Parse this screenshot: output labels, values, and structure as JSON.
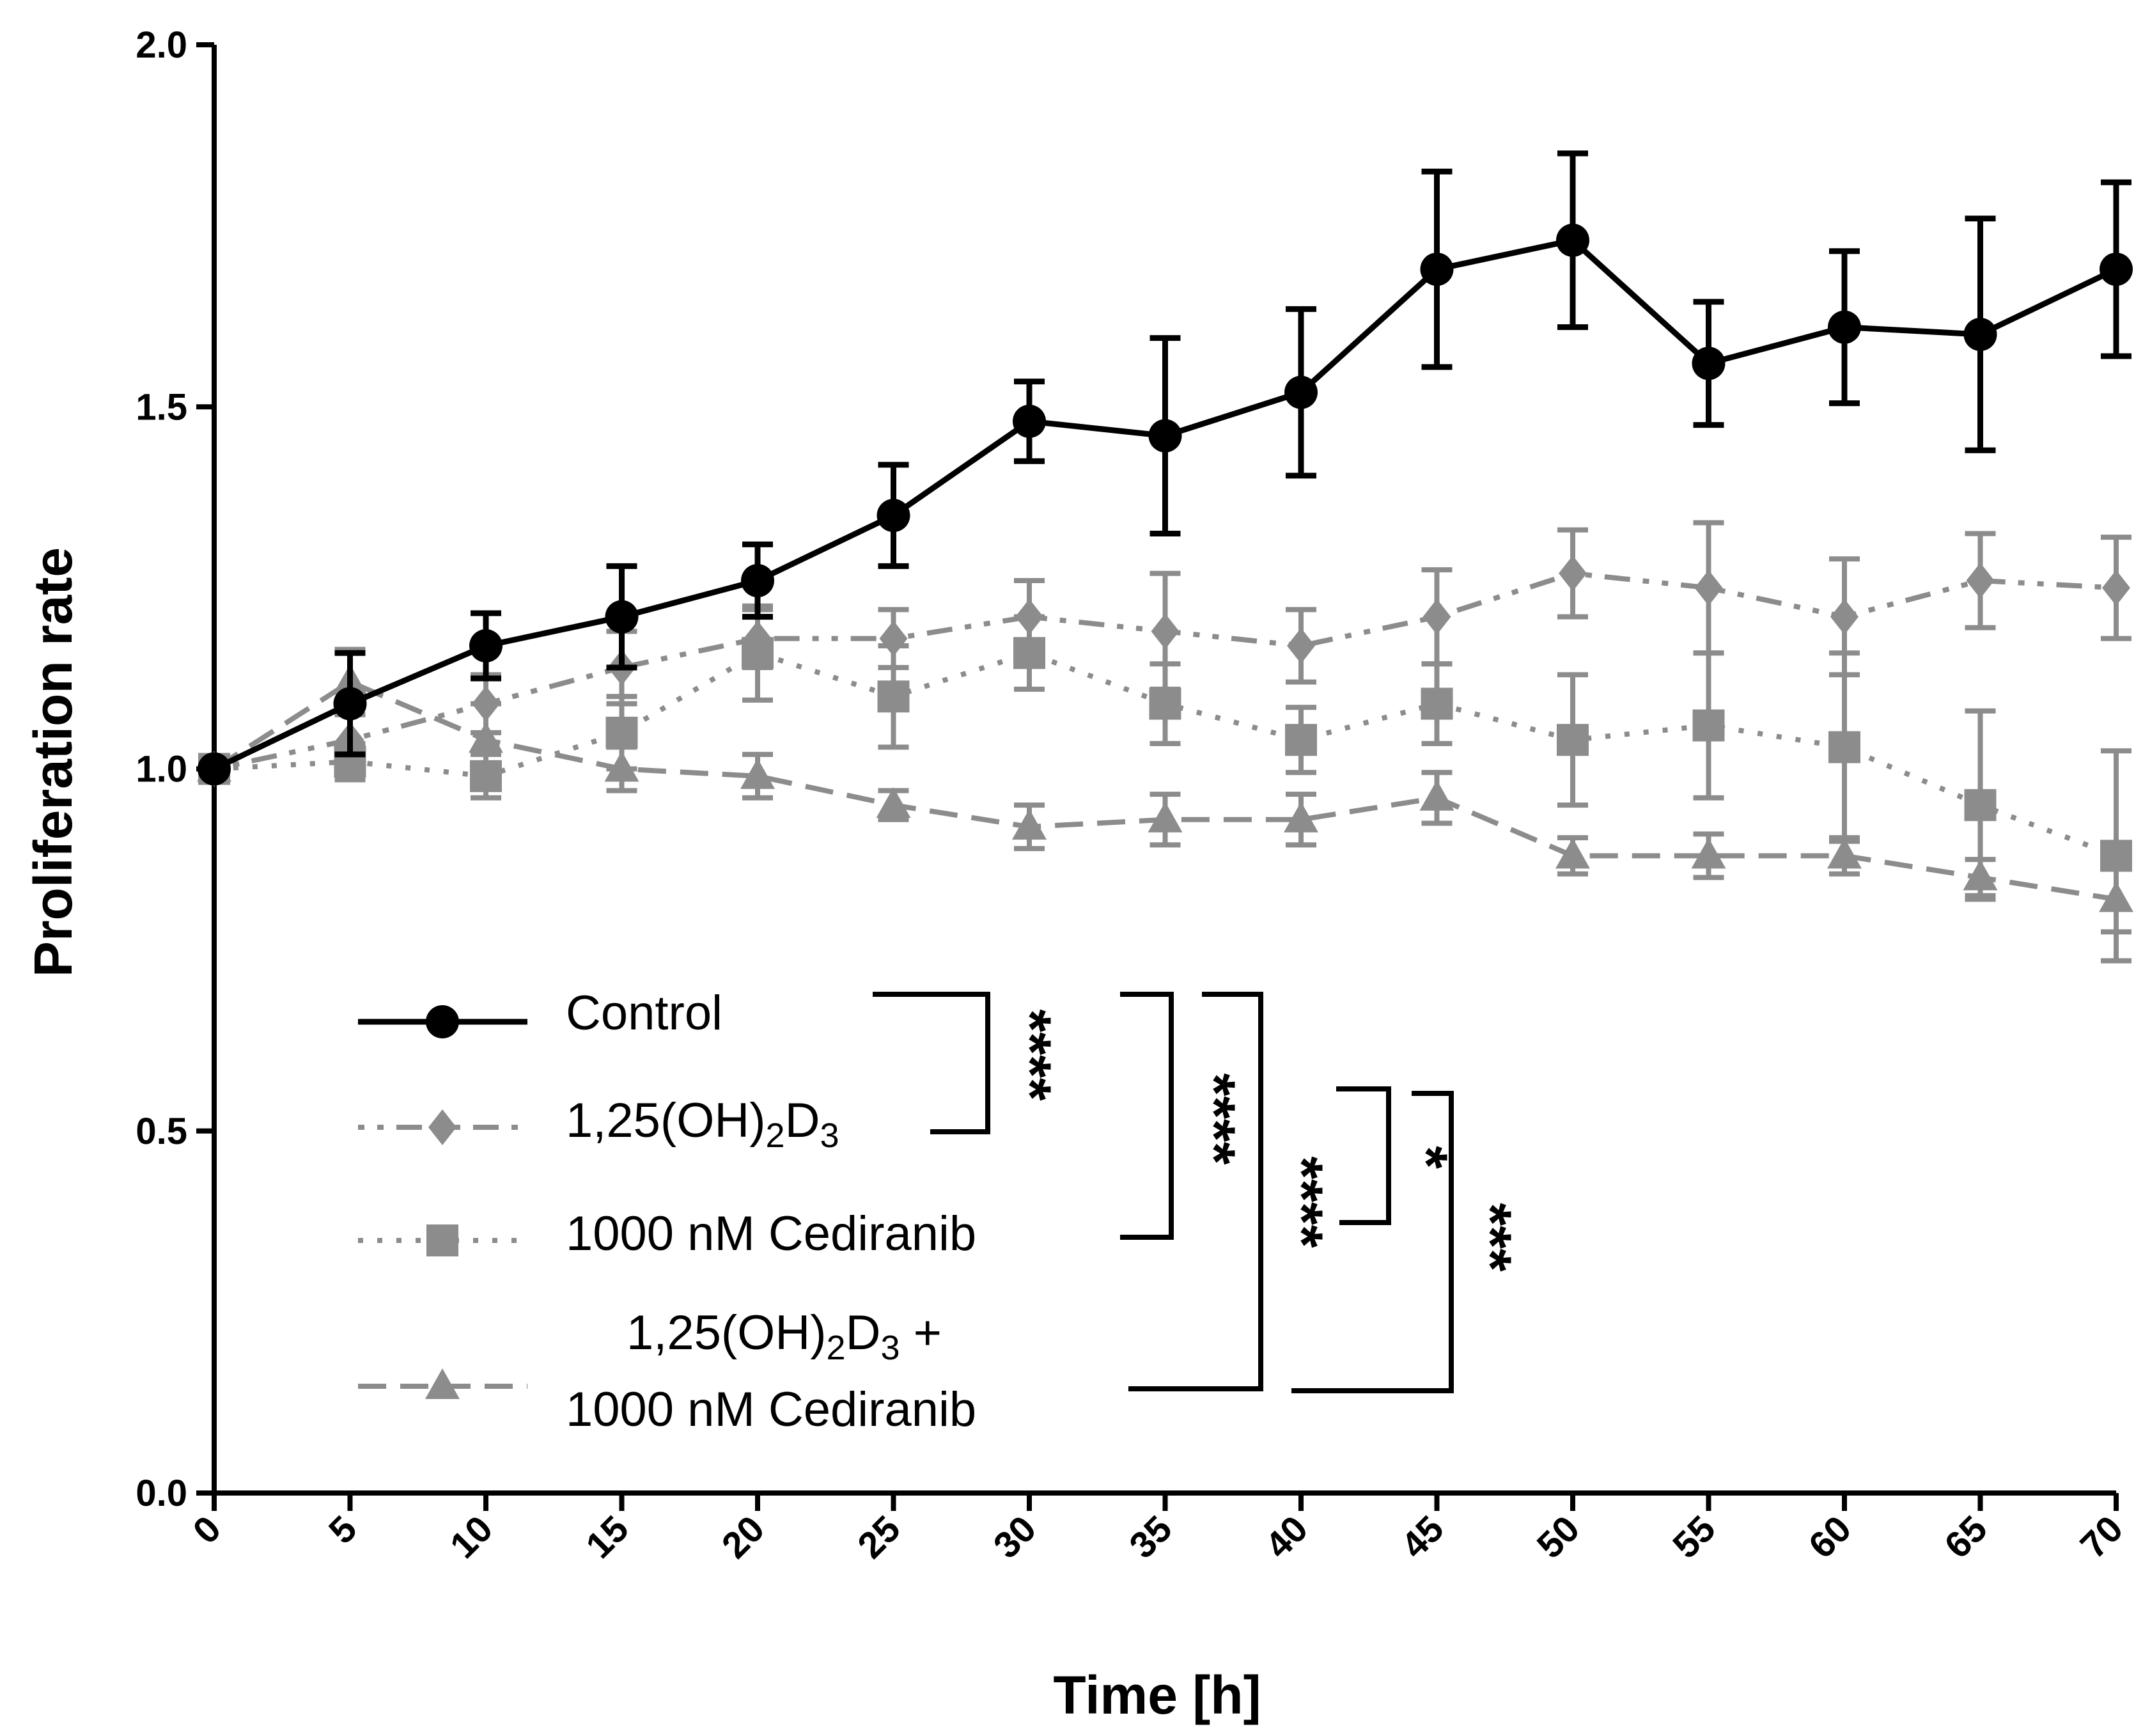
{
  "chart_data": {
    "type": "line",
    "xlabel": "Time [h]",
    "ylabel": "Proliferation rate",
    "xlim": [
      0,
      70
    ],
    "ylim": [
      0,
      2.0
    ],
    "xticks": [
      "0",
      "5",
      "10",
      "15",
      "20",
      "25",
      "30",
      "35",
      "40",
      "45",
      "50",
      "55",
      "60",
      "65",
      "70"
    ],
    "yticks": [
      "0.0",
      "0.5",
      "1.0",
      "1.5",
      "2.0"
    ],
    "x": [
      0,
      5,
      10,
      15,
      20,
      25,
      30,
      35,
      40,
      45,
      50,
      55,
      60,
      65,
      70
    ],
    "series": [
      {
        "name": "Control",
        "color": "#000000",
        "marker": "circle",
        "dash": "solid",
        "values": [
          1.0,
          1.09,
          1.17,
          1.21,
          1.26,
          1.35,
          1.48,
          1.46,
          1.52,
          1.69,
          1.73,
          1.56,
          1.61,
          1.6,
          1.69
        ],
        "errors": [
          0.0,
          0.07,
          0.045,
          0.07,
          0.05,
          0.07,
          0.055,
          0.135,
          0.115,
          0.135,
          0.12,
          0.085,
          0.105,
          0.16,
          0.12
        ]
      },
      {
        "name": "1,25(OH)2D3",
        "color": "#8c8c8c",
        "marker": "diamond",
        "dash": "dashdot",
        "values": [
          1.0,
          1.04,
          1.09,
          1.14,
          1.18,
          1.18,
          1.21,
          1.19,
          1.17,
          1.21,
          1.27,
          1.25,
          1.21,
          1.26,
          1.25
        ],
        "errors": [
          0.0,
          0.035,
          0.04,
          0.05,
          0.04,
          0.04,
          0.05,
          0.08,
          0.05,
          0.065,
          0.06,
          0.09,
          0.08,
          0.065,
          0.07
        ]
      },
      {
        "name": "1000 nM Cediranib",
        "color": "#8c8c8c",
        "marker": "square",
        "dash": "dotted",
        "values": [
          1.0,
          1.01,
          0.99,
          1.05,
          1.16,
          1.1,
          1.16,
          1.09,
          1.04,
          1.09,
          1.04,
          1.06,
          1.03,
          0.95,
          0.88
        ],
        "errors": [
          0.0,
          0.025,
          0.03,
          0.05,
          0.065,
          0.07,
          0.05,
          0.055,
          0.045,
          0.055,
          0.09,
          0.1,
          0.13,
          0.13,
          0.145
        ]
      },
      {
        "name": "1,25(OH)2D3 + 1000 nM Cediranib",
        "color": "#8c8c8c",
        "marker": "triangle",
        "dash": "dashed",
        "values": [
          1.0,
          1.12,
          1.04,
          1.0,
          0.99,
          0.95,
          0.92,
          0.93,
          0.93,
          0.96,
          0.88,
          0.88,
          0.88,
          0.85,
          0.82
        ],
        "errors": [
          0.0,
          0.045,
          0.05,
          0.03,
          0.03,
          0.02,
          0.03,
          0.035,
          0.035,
          0.035,
          0.025,
          0.03,
          0.025,
          0.025,
          0.045
        ]
      }
    ],
    "legend": {
      "placement": "bottom-left",
      "entries": [
        {
          "label": "Control"
        },
        {
          "label_main": "1,25(OH)",
          "sub1": "2",
          "mid": "D",
          "sub2": "3"
        },
        {
          "label": "1000 nM Cediranib"
        },
        {
          "label_main": "1,25(OH)",
          "sub1": "2",
          "mid": "D",
          "sub2": "3",
          "suffix": " +",
          "line2": "1000 nM Cediranib"
        }
      ]
    },
    "significance": [
      {
        "between": [
          "Control",
          "1,25(OH)2D3"
        ],
        "label": "****"
      },
      {
        "between": [
          "Control",
          "1000 nM Cediranib"
        ],
        "label": "****"
      },
      {
        "between": [
          "Control",
          "1,25(OH)2D3 + 1000 nM Cediranib"
        ],
        "label": "****"
      },
      {
        "between": [
          "1,25(OH)2D3",
          "1000 nM Cediranib"
        ],
        "label": "*"
      },
      {
        "between": [
          "1,25(OH)2D3",
          "1,25(OH)2D3 + 1000 nM Cediranib"
        ],
        "label": "***"
      }
    ]
  }
}
